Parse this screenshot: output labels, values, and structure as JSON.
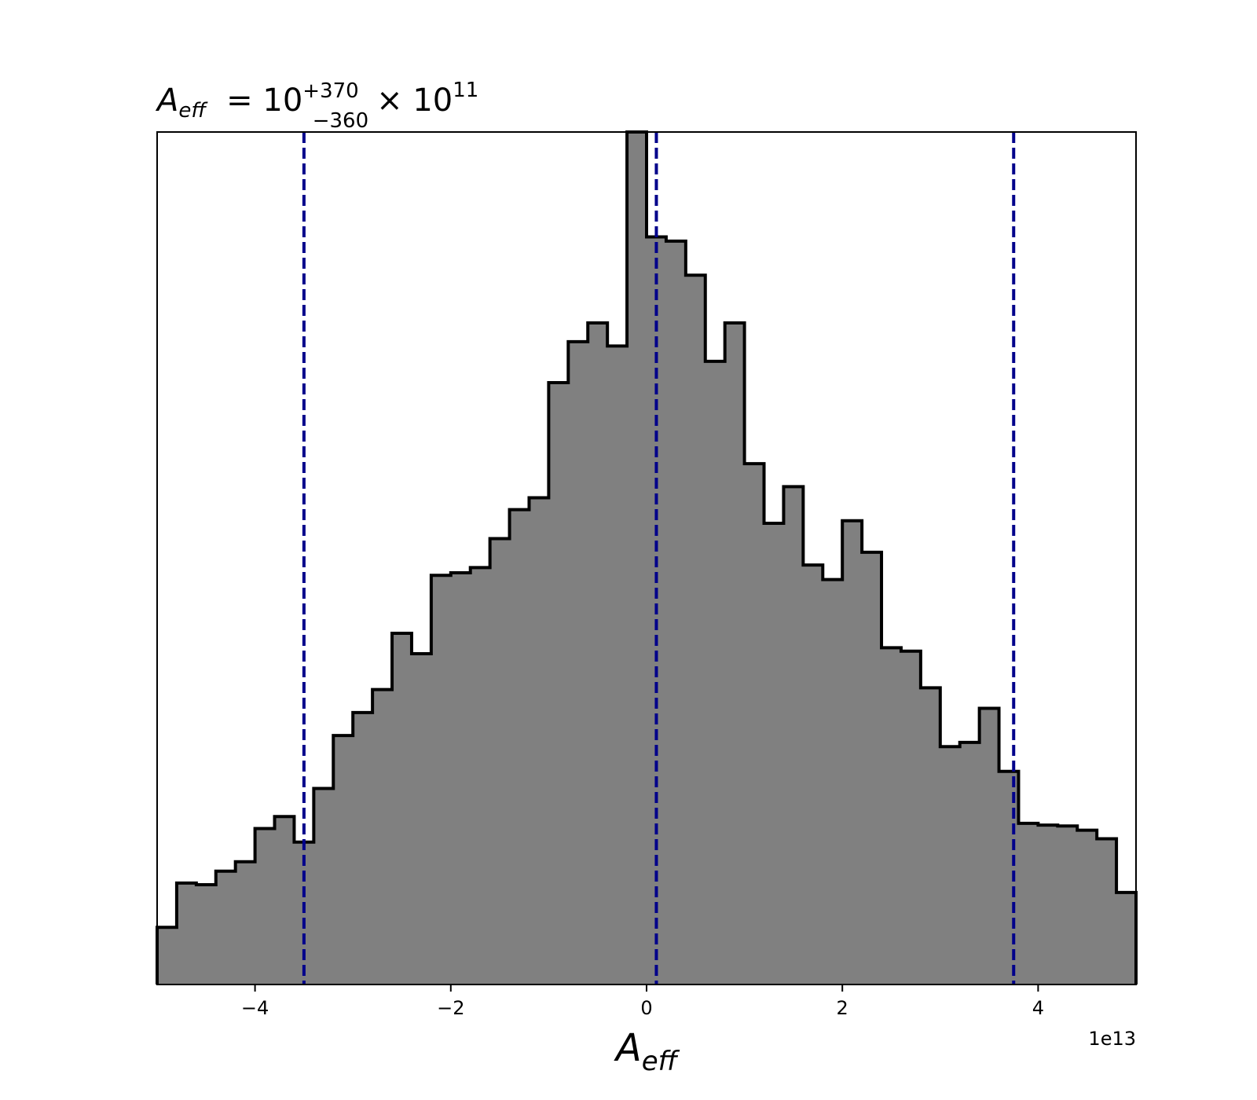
{
  "chart_data": {
    "type": "histogram",
    "title": {
      "symbol": "A",
      "symbol_sub": "eff",
      "equals": "= 10",
      "sup": "+370",
      "sub": "−360",
      "times": "× 10",
      "exponent": "11"
    },
    "xlabel": {
      "symbol": "A",
      "sub": "eff"
    },
    "ylabel": "",
    "x_offset_label": "1e13",
    "xlim": [
      -5,
      5
    ],
    "x_scale_note": "x values in units of 1e13",
    "xticks": [
      -4,
      -2,
      0,
      2,
      4
    ],
    "xtick_labels": [
      "−4",
      "−2",
      "0",
      "2",
      "4"
    ],
    "yticks_shown": false,
    "ylim": [
      0,
      1000
    ],
    "bin_edges": [
      -5.0,
      -4.8,
      -4.6,
      -4.4,
      -4.2,
      -4.0,
      -3.8,
      -3.6,
      -3.4,
      -3.2,
      -3.0,
      -2.8,
      -2.6,
      -2.4,
      -2.2,
      -2.0,
      -1.8,
      -1.6,
      -1.4,
      -1.2,
      -1.0,
      -0.8,
      -0.6,
      -0.4,
      -0.2,
      0.0,
      0.2,
      0.4,
      0.6,
      0.8,
      1.0,
      1.2,
      1.4,
      1.6,
      1.8,
      2.0,
      2.2,
      2.4,
      2.6,
      2.8,
      3.0,
      3.2,
      3.4,
      3.6,
      3.8,
      4.0,
      4.2,
      4.4,
      4.6,
      4.8,
      5.0
    ],
    "counts": [
      67,
      119,
      117,
      133,
      144,
      183,
      197,
      167,
      230,
      292,
      319,
      346,
      412,
      388,
      480,
      483,
      489,
      523,
      557,
      571,
      706,
      754,
      776,
      749,
      1000,
      877,
      872,
      832,
      731,
      776,
      611,
      541,
      584,
      492,
      475,
      544,
      507,
      395,
      391,
      348,
      279,
      284,
      324,
      250,
      189,
      187,
      186,
      181,
      171,
      108
    ],
    "histogram_fill": "#808080",
    "histogram_edge": "#000000",
    "vlines": [
      {
        "x": -3.5,
        "style": "dashed",
        "color": "#00008b"
      },
      {
        "x": 0.1,
        "style": "dashed",
        "color": "#00008b"
      },
      {
        "x": 3.75,
        "style": "dashed",
        "color": "#00008b"
      }
    ],
    "grid": false,
    "legend": "none"
  }
}
